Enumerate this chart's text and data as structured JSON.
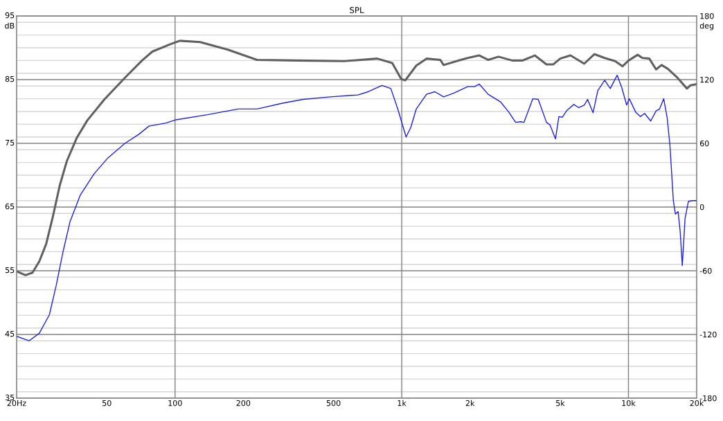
{
  "chart_data": {
    "type": "line",
    "title": "SPL",
    "ylabel": "dB",
    "y2label": "deg",
    "log": "x",
    "grid": true,
    "line_style": "solid",
    "marker": "none",
    "xlim": [
      20,
      20000
    ],
    "xticks": [
      {
        "value": 20,
        "label": "20Hz"
      },
      50,
      100,
      200,
      500,
      {
        "value": 1000,
        "label": "1k"
      },
      {
        "value": 2000,
        "label": "2k"
      },
      {
        "value": 5000,
        "label": "5k"
      },
      {
        "value": 10000,
        "label": "10k"
      },
      {
        "value": 20000,
        "label": "20k"
      }
    ],
    "ylim": [
      35,
      95
    ],
    "yticks": [
      35,
      45,
      55,
      65,
      75,
      85,
      95
    ],
    "y2lim": [
      -180,
      180
    ],
    "y2ticks": [
      -180,
      -120,
      -60,
      0,
      60,
      120,
      180
    ],
    "series": [
      {
        "color": "#606060",
        "x": [
          20,
          21.9,
          23.5,
          25.2,
          27.0,
          28.9,
          31.0,
          33.3,
          36.9,
          41.0,
          48.8,
          60.1,
          71.5,
          79.4,
          94.4,
          105,
          129,
          171,
          230,
          343,
          557,
          779,
          908,
          994,
          1037,
          1159,
          1286,
          1479,
          1530,
          1820,
          1954,
          2198,
          2404,
          2673,
          3070,
          3410,
          3864,
          4348,
          4664,
          5000,
          5550,
          6380,
          7080,
          7856,
          8730,
          9420,
          10020,
          10980,
          11530,
          12360,
          13240,
          14000,
          14920,
          16340,
          18120,
          18760,
          20000
        ],
        "values": [
          54.9,
          54.3,
          54.7,
          56.5,
          59.2,
          63.5,
          68.4,
          72.2,
          75.9,
          78.6,
          81.9,
          85.3,
          88.0,
          89.4,
          90.5,
          91.1,
          90.9,
          89.7,
          88.1,
          88.0,
          87.9,
          88.3,
          87.6,
          85.1,
          84.9,
          87.2,
          88.3,
          88.1,
          87.3,
          88.1,
          88.4,
          88.8,
          88.1,
          88.6,
          88.0,
          88.0,
          88.8,
          87.4,
          87.4,
          88.3,
          88.8,
          87.5,
          89.0,
          88.4,
          87.9,
          87.1,
          88.0,
          88.9,
          88.4,
          88.3,
          86.6,
          87.3,
          86.7,
          85.4,
          83.6,
          84.1,
          84.3
        ]
      },
      {
        "color": "#2020e0",
        "x": [
          20,
          22.7,
          25.2,
          27.9,
          29.9,
          32.1,
          34.4,
          38.2,
          43.9,
          50.5,
          60.1,
          69.1,
          76.7,
          91.3,
          101,
          139,
          190,
          230,
          298,
          367,
          485,
          641,
          711,
          818,
          895,
          960,
          1045,
          1096,
          1159,
          1286,
          1400,
          1530,
          1698,
          1954,
          2094,
          2198,
          2404,
          2729,
          2966,
          3178,
          3340,
          3460,
          3785,
          4000,
          4348,
          4506,
          4765,
          4932,
          5106,
          5358,
          5740,
          6040,
          6380,
          6604,
          6980,
          7328,
          7856,
          8314,
          8914,
          9354,
          9820,
          10090,
          10760,
          11290,
          11780,
          12540,
          13240,
          13720,
          14310,
          14820,
          15240,
          15780,
          16110,
          16560,
          16920,
          17280,
          17770,
          18390,
          19180,
          20000
        ],
        "values": [
          44.7,
          44.0,
          45.2,
          48.1,
          52.7,
          58.1,
          62.7,
          66.9,
          70.2,
          72.7,
          75.0,
          76.4,
          77.7,
          78.2,
          78.7,
          79.5,
          80.4,
          80.4,
          81.3,
          81.9,
          82.3,
          82.6,
          83.1,
          84.1,
          83.6,
          80.4,
          76.0,
          77.5,
          80.4,
          82.7,
          83.1,
          82.3,
          82.9,
          83.9,
          83.9,
          84.3,
          82.7,
          81.5,
          79.9,
          78.3,
          78.4,
          78.3,
          82.0,
          81.9,
          78.3,
          77.9,
          75.7,
          79.2,
          79.1,
          80.2,
          81.1,
          80.6,
          81.0,
          81.9,
          79.8,
          83.3,
          84.9,
          83.6,
          85.7,
          83.7,
          81.0,
          82.0,
          79.9,
          79.2,
          79.7,
          78.5,
          80.1,
          80.4,
          82.0,
          79.0,
          74.7,
          66.0,
          63.9,
          64.3,
          61.1,
          55.8,
          63.2,
          65.9,
          66.0,
          66.0
        ]
      }
    ]
  }
}
